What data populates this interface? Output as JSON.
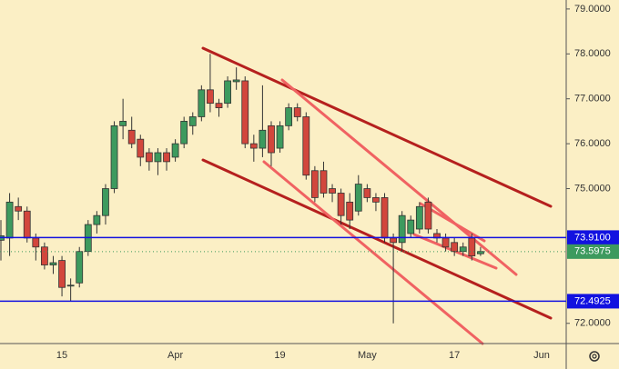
{
  "chart_data": {
    "type": "candlestick",
    "categories": [
      null,
      null,
      null,
      null,
      null,
      null,
      null,
      "15",
      null,
      null,
      null,
      null,
      null,
      null,
      null,
      null,
      null,
      null,
      null,
      null,
      "Apr",
      null,
      null,
      null,
      null,
      null,
      null,
      null,
      null,
      null,
      null,
      null,
      "19",
      null,
      null,
      null,
      null,
      null,
      null,
      null,
      null,
      null,
      "May",
      null,
      null,
      null,
      null,
      null,
      null,
      null,
      null,
      null,
      "17",
      null,
      null,
      null,
      null,
      null,
      null,
      null,
      null,
      null,
      "Jun"
    ],
    "open": [
      73.85,
      73.9,
      74.6,
      74.5,
      73.9,
      73.7,
      73.3,
      73.4,
      72.85,
      72.9,
      73.6,
      74.2,
      74.4,
      75.0,
      76.4,
      76.3,
      76.1,
      75.8,
      75.6,
      75.8,
      75.7,
      76.0,
      76.4,
      76.6,
      77.2,
      76.9,
      76.9,
      77.38,
      77.4,
      76.0,
      75.9,
      76.4,
      75.9,
      76.4,
      76.8,
      76.6,
      75.4,
      75.4,
      75.0,
      74.9,
      74.7,
      74.5,
      75.0,
      74.8,
      74.8,
      73.9,
      73.8,
      74.0,
      74.1,
      74.7,
      74.0,
      73.9,
      73.8,
      73.6,
      73.9,
      73.55,
      null,
      null,
      null,
      null,
      null,
      null,
      null
    ],
    "high": [
      74.3,
      74.9,
      74.8,
      74.6,
      74.0,
      73.8,
      73.5,
      73.5,
      73.0,
      73.7,
      74.3,
      74.5,
      75.1,
      76.5,
      77.0,
      76.6,
      76.2,
      75.9,
      75.9,
      75.9,
      76.1,
      76.6,
      76.7,
      77.3,
      78.0,
      77.0,
      77.5,
      77.7,
      77.5,
      76.2,
      77.3,
      76.5,
      76.5,
      76.9,
      76.9,
      76.7,
      75.5,
      75.6,
      75.1,
      75.0,
      74.9,
      75.3,
      75.1,
      74.9,
      74.9,
      74.0,
      74.5,
      74.4,
      74.7,
      74.8,
      74.1,
      74.0,
      73.9,
      73.8,
      74.0,
      73.7,
      null,
      null,
      null,
      null,
      null,
      null,
      null
    ],
    "low": [
      73.4,
      73.5,
      74.3,
      73.8,
      73.4,
      73.2,
      73.1,
      72.6,
      72.5,
      72.8,
      73.5,
      74.0,
      74.2,
      74.9,
      76.1,
      75.9,
      75.5,
      75.4,
      75.3,
      75.4,
      75.6,
      75.9,
      76.2,
      76.5,
      76.7,
      76.6,
      76.8,
      77.2,
      75.9,
      75.6,
      75.7,
      75.5,
      75.8,
      76.3,
      76.5,
      75.2,
      74.7,
      74.8,
      74.7,
      74.2,
      74.1,
      74.4,
      74.7,
      74.5,
      73.8,
      72.0,
      73.6,
      73.9,
      74.0,
      74.0,
      73.8,
      73.6,
      73.5,
      73.5,
      73.4,
      73.5,
      null,
      null,
      null,
      null,
      null,
      null,
      null
    ],
    "close": [
      73.95,
      74.7,
      74.5,
      73.9,
      73.7,
      73.3,
      73.35,
      72.8,
      72.85,
      73.6,
      74.2,
      74.4,
      75.0,
      76.4,
      76.5,
      76.0,
      75.7,
      75.6,
      75.8,
      75.6,
      76.0,
      76.5,
      76.6,
      77.2,
      76.9,
      76.8,
      77.4,
      77.42,
      76.0,
      75.9,
      76.3,
      75.8,
      76.4,
      76.8,
      76.6,
      75.3,
      74.8,
      74.9,
      74.9,
      74.4,
      74.3,
      75.1,
      74.8,
      74.7,
      73.9,
      73.8,
      74.4,
      74.3,
      74.6,
      74.1,
      73.9,
      73.7,
      73.6,
      73.7,
      73.5,
      73.6,
      null,
      null,
      null,
      null,
      null,
      null,
      null
    ],
    "up_color": "#3d9a5e",
    "down_color": "#d2463c",
    "ylim": [
      71.55,
      79.2
    ],
    "yticks": [
      {
        "value": 79,
        "label": "79.0000"
      },
      {
        "value": 78,
        "label": "78.0000"
      },
      {
        "value": 77,
        "label": "77.0000"
      },
      {
        "value": 76,
        "label": "76.0000"
      },
      {
        "value": 75,
        "label": "75.0000"
      },
      {
        "value": 72,
        "label": "72.0000"
      }
    ],
    "price_lines": [
      {
        "value": 73.91,
        "label": "73.9100",
        "color": "#1212e0"
      },
      {
        "value": 72.4925,
        "label": "72.4925",
        "color": "#1212e0"
      },
      {
        "value": 73.5975,
        "label": "73.5975",
        "color": "#3d9a5e"
      }
    ]
  }
}
